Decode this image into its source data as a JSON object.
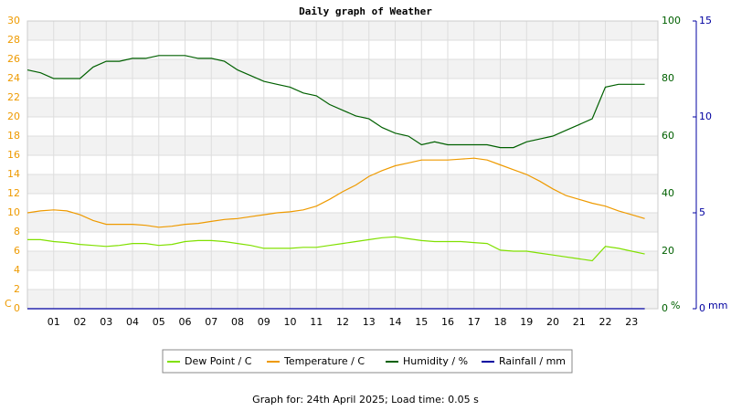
{
  "chart_data": {
    "type": "line",
    "title": "Daily graph of Weather",
    "ylabel": "C",
    "y2label": "%",
    "y3label": "mm",
    "x": [
      0,
      0.5,
      1,
      1.5,
      2,
      2.5,
      3,
      3.5,
      4,
      4.5,
      5,
      5.5,
      6,
      6.5,
      7,
      7.5,
      8,
      8.5,
      9,
      9.5,
      10,
      10.5,
      11,
      11.5,
      12,
      12.5,
      13,
      13.5,
      14,
      14.5,
      15,
      15.5,
      16,
      16.5,
      17,
      17.5,
      18,
      18.5,
      19,
      19.5,
      20,
      20.5,
      21,
      21.5,
      22,
      22.5,
      23,
      23.5
    ],
    "xlim": [
      0,
      24
    ],
    "xticks": [
      {
        "value": 1,
        "label": "01"
      },
      {
        "value": 2,
        "label": "02"
      },
      {
        "value": 3,
        "label": "03"
      },
      {
        "value": 4,
        "label": "04"
      },
      {
        "value": 5,
        "label": "05"
      },
      {
        "value": 6,
        "label": "06"
      },
      {
        "value": 7,
        "label": "07"
      },
      {
        "value": 8,
        "label": "08"
      },
      {
        "value": 9,
        "label": "09"
      },
      10,
      11,
      12,
      13,
      14,
      15,
      16,
      17,
      18,
      19,
      20,
      21,
      22,
      23
    ],
    "ylim": [
      0,
      30
    ],
    "yticks": [
      0,
      2,
      4,
      6,
      8,
      10,
      12,
      14,
      16,
      18,
      20,
      22,
      24,
      26,
      28,
      30
    ],
    "ycolor": "#ee9a00",
    "y2lim": [
      0,
      100
    ],
    "y2ticks": [
      0,
      20,
      40,
      60,
      80,
      100
    ],
    "y2color": "#006000",
    "y3lim": [
      0,
      15
    ],
    "y3ticks": [
      0,
      5,
      10,
      15
    ],
    "y3color": "#0000a0",
    "grid": true,
    "series": [
      {
        "name": "Dew Point / C",
        "color": "#80e000",
        "axis": "y",
        "values": [
          7.2,
          7.2,
          7.0,
          6.9,
          6.7,
          6.6,
          6.5,
          6.6,
          6.8,
          6.8,
          6.6,
          6.7,
          7.0,
          7.1,
          7.1,
          7.0,
          6.8,
          6.6,
          6.3,
          6.3,
          6.3,
          6.4,
          6.4,
          6.6,
          6.8,
          7.0,
          7.2,
          7.4,
          7.5,
          7.3,
          7.1,
          7.0,
          7.0,
          7.0,
          6.9,
          6.8,
          6.1,
          6.0,
          6.0,
          5.8,
          5.6,
          5.4,
          5.2,
          5.0,
          6.5,
          6.3,
          6.0,
          5.7
        ]
      },
      {
        "name": "Temperature / C",
        "color": "#ee9a00",
        "axis": "y",
        "values": [
          10.0,
          10.2,
          10.3,
          10.2,
          9.8,
          9.2,
          8.8,
          8.8,
          8.8,
          8.7,
          8.5,
          8.6,
          8.8,
          8.9,
          9.1,
          9.3,
          9.4,
          9.6,
          9.8,
          10.0,
          10.1,
          10.3,
          10.7,
          11.4,
          12.2,
          12.9,
          13.8,
          14.4,
          14.9,
          15.2,
          15.5,
          15.5,
          15.5,
          15.6,
          15.7,
          15.5,
          15.0,
          14.5,
          14.0,
          13.3,
          12.5,
          11.8,
          11.4,
          11.0,
          10.7,
          10.2,
          9.8,
          9.4
        ]
      },
      {
        "name": "Humidity / %",
        "color": "#006000",
        "axis": "y2",
        "values": [
          83,
          82,
          80,
          80,
          80,
          84,
          86,
          86,
          87,
          87,
          88,
          88,
          88,
          87,
          87,
          86,
          83,
          81,
          79,
          78,
          77,
          75,
          74,
          71,
          69,
          67,
          66,
          63,
          61,
          60,
          57,
          58,
          57,
          57,
          57,
          57,
          56,
          56,
          58,
          59,
          60,
          62,
          64,
          66,
          77,
          78,
          78,
          78
        ]
      },
      {
        "name": "Rainfall / mm",
        "color": "#0000a0",
        "axis": "y3",
        "values": [
          0,
          0,
          0,
          0,
          0,
          0,
          0,
          0,
          0,
          0,
          0,
          0,
          0,
          0,
          0,
          0,
          0,
          0,
          0,
          0,
          0,
          0,
          0,
          0,
          0,
          0,
          0,
          0,
          0,
          0,
          0,
          0,
          0,
          0,
          0,
          0,
          0,
          0,
          0,
          0,
          0,
          0,
          0,
          0,
          0,
          0,
          0,
          0
        ]
      }
    ],
    "footer": "Graph for: 24th April 2025; Load time: 0.05 s"
  }
}
